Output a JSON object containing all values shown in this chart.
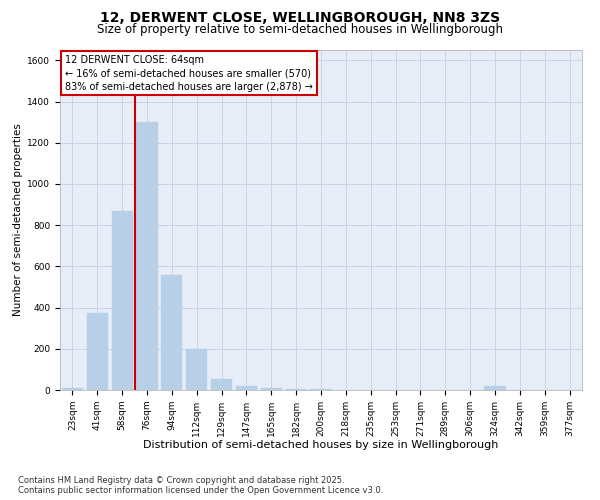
{
  "title1": "12, DERWENT CLOSE, WELLINGBOROUGH, NN8 3ZS",
  "title2": "Size of property relative to semi-detached houses in Wellingborough",
  "xlabel": "Distribution of semi-detached houses by size in Wellingborough",
  "ylabel": "Number of semi-detached properties",
  "categories": [
    "23sqm",
    "41sqm",
    "58sqm",
    "76sqm",
    "94sqm",
    "112sqm",
    "129sqm",
    "147sqm",
    "165sqm",
    "182sqm",
    "200sqm",
    "218sqm",
    "235sqm",
    "253sqm",
    "271sqm",
    "289sqm",
    "306sqm",
    "324sqm",
    "342sqm",
    "359sqm",
    "377sqm"
  ],
  "values": [
    10,
    375,
    870,
    1300,
    560,
    200,
    55,
    20,
    8,
    3,
    3,
    2,
    2,
    1,
    1,
    0,
    0,
    18,
    0,
    0,
    0
  ],
  "bar_color": "#b8cfe8",
  "bar_edge_color": "#b8cfe8",
  "vline_x": 2.5,
  "vline_color": "#cc0000",
  "annotation_box_text": "12 DERWENT CLOSE: 64sqm\n← 16% of semi-detached houses are smaller (570)\n83% of semi-detached houses are larger (2,878) →",
  "annotation_box_color": "#cc0000",
  "ylim": [
    0,
    1650
  ],
  "yticks": [
    0,
    200,
    400,
    600,
    800,
    1000,
    1200,
    1400,
    1600
  ],
  "grid_color": "#c8d4e8",
  "background_color": "#e8eef8",
  "footer_text": "Contains HM Land Registry data © Crown copyright and database right 2025.\nContains public sector information licensed under the Open Government Licence v3.0.",
  "title1_fontsize": 10,
  "title2_fontsize": 8.5,
  "xlabel_fontsize": 8,
  "ylabel_fontsize": 7.5,
  "tick_fontsize": 6.5,
  "annotation_fontsize": 7,
  "footer_fontsize": 6
}
